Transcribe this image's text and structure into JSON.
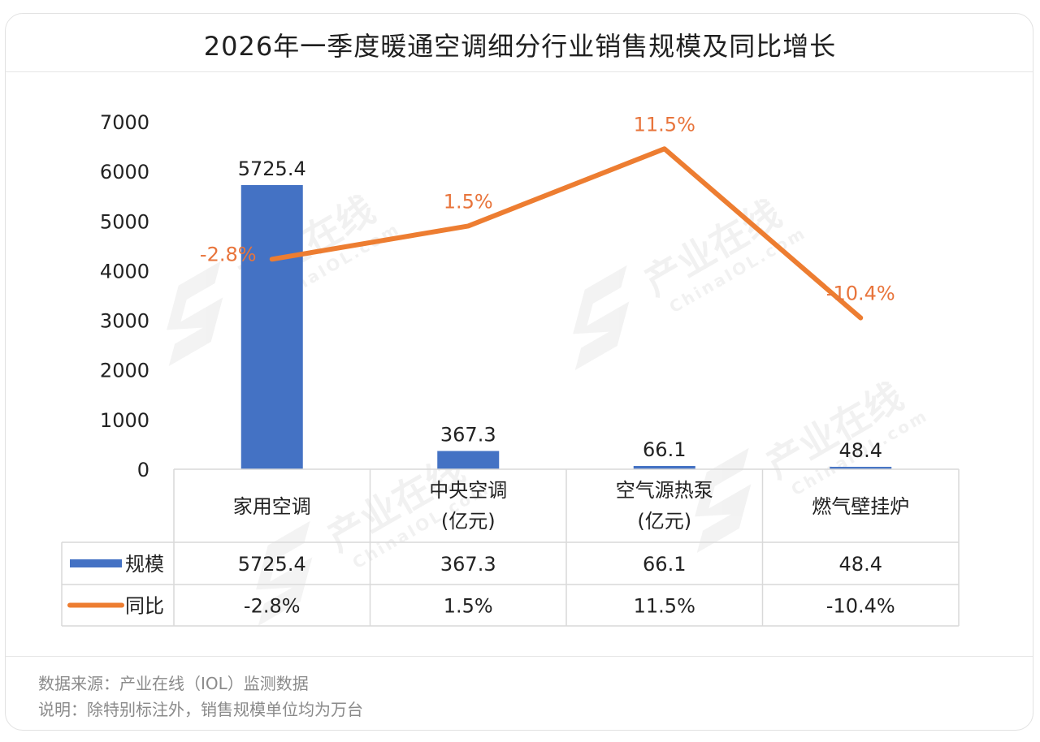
{
  "title": "2026年一季度暖通空调细分行业销售规模及同比增长",
  "footer": {
    "source": "数据来源：产业在线（IOL）监测数据",
    "note": "说明：除特别标注外，销售规模单位均为万台"
  },
  "watermark": {
    "brand": "产业在线",
    "domain": "ChinaIOL.com"
  },
  "colors": {
    "bar": "#4472c4",
    "line": "#ed7d31",
    "label_line": "#e8743b",
    "text": "#222222"
  },
  "chart_data": {
    "type": "bar",
    "categories": [
      [
        "家用空调"
      ],
      [
        "中央空调",
        "(亿元)"
      ],
      [
        "空气源热泵",
        "(亿元)"
      ],
      [
        "燃气壁挂炉"
      ]
    ],
    "ylim": [
      0,
      7000
    ],
    "yticks": [
      0,
      1000,
      2000,
      3000,
      4000,
      5000,
      6000,
      7000
    ],
    "series": [
      {
        "name": "规模",
        "kind": "bar",
        "values": [
          5725.4,
          367.3,
          66.1,
          48.4
        ],
        "labels": [
          "5725.4",
          "367.3",
          "66.1",
          "48.4"
        ]
      },
      {
        "name": "同比",
        "kind": "line",
        "values": [
          -2.8,
          1.5,
          11.5,
          -10.4
        ],
        "labels": [
          "-2.8%",
          "1.5%",
          "11.5%",
          "-10.4%"
        ],
        "secondary_axis_range": [
          -30,
          15
        ]
      }
    ],
    "legend": "data-table"
  }
}
